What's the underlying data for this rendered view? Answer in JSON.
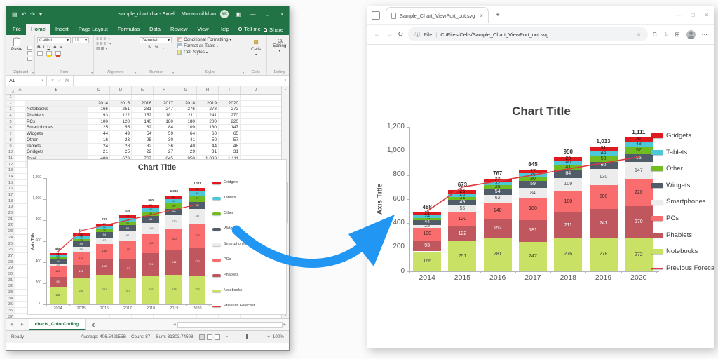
{
  "colors": {
    "excel_green": "#217346",
    "arrow_blue": "#2196f3"
  },
  "icons": {
    "save": "▤",
    "undo": "↶",
    "redo": "↷",
    "dropdown": "▾",
    "minimize": "—",
    "maximize": "□",
    "close": "×",
    "back": "←",
    "forward": "→",
    "refresh": "↻",
    "info": "ⓘ",
    "star": "☆",
    "dots": "⋯",
    "collections": "⊞",
    "c_icon": "C",
    "new_tab": "+",
    "new_sheet": "⊕",
    "scroll_up": "▲",
    "scroll_down": "▼",
    "nav_left": "◀",
    "nav_right": "▶",
    "check": "✓",
    "x_btn": "×",
    "fx": "fx",
    "ribbon_display": "▣",
    "minus": "−",
    "plus": "+",
    "bold": "B",
    "italic": "I",
    "underline": "U",
    "grow_font": "A",
    "shrink_font": "A",
    "align": "≡"
  },
  "excel": {
    "window_title": "sample_chart.xlsx - Excel",
    "user_name": "Muzammil khan",
    "avatar_initials": "MK",
    "menu_tabs": [
      "File",
      "Home",
      "Insert",
      "Page Layout",
      "Formulas",
      "Data",
      "Review",
      "View",
      "Help"
    ],
    "tell_me": "Tell me",
    "share_label": "Share",
    "ribbon": {
      "paste_label": "Paste",
      "font_name": "Calibri",
      "font_size": "11",
      "number_format": "General",
      "currency": "$",
      "percent": "%",
      "comma": ",",
      "styles": [
        "Conditional Formatting",
        "Format as Table",
        "Cell Styles"
      ],
      "cells_label": "Cells",
      "editing_label": "Editing",
      "groups": [
        "Clipboard",
        "Font",
        "Alignment",
        "Number",
        "Styles",
        "Cells",
        "Editing"
      ]
    },
    "name_box": "A1",
    "columns": [
      "A",
      "B",
      "C",
      "D",
      "E",
      "F",
      "G",
      "H",
      "I",
      "J",
      "K"
    ],
    "row_count": 38,
    "table": {
      "years": [
        "2014",
        "2015",
        "2016",
        "2017",
        "2018",
        "2019",
        "2020"
      ],
      "rows": [
        {
          "label": "Notebooks",
          "values": [
            166,
            251,
            281,
            247,
            276,
            278,
            272
          ]
        },
        {
          "label": "Phablets",
          "values": [
            93,
            122,
            152,
            181,
            211,
            241,
            270
          ]
        },
        {
          "label": "PCs",
          "values": [
            100,
            120,
            140,
            180,
            180,
            200,
            220
          ]
        },
        {
          "label": "Smartphones",
          "values": [
            25,
            55,
            62,
            84,
            109,
            130,
            147
          ]
        },
        {
          "label": "Widgets",
          "values": [
            44,
            49,
            54,
            59,
            64,
            60,
            65
          ]
        },
        {
          "label": "Other",
          "values": [
            16,
            23,
            25,
            30,
            41,
            50,
            57
          ]
        },
        {
          "label": "Tablets",
          "values": [
            24,
            28,
            32,
            36,
            40,
            44,
            48
          ]
        },
        {
          "label": "Gridgets",
          "values": [
            21,
            25,
            22,
            27,
            29,
            31,
            31
          ]
        },
        {
          "label": "Total",
          "values": [
            "488",
            "673",
            "767",
            "845",
            "950",
            "1,033",
            "1,111"
          ]
        },
        {
          "label": "Previous Forecast",
          "values": [
            500,
            700,
            750,
            800,
            850,
            900,
            950
          ]
        }
      ]
    },
    "sheet_tab": "charts_ColorCoding",
    "status": {
      "ready": "Ready",
      "average": "Average: 406.5421556",
      "count": "Count: 87",
      "sum": "Sum: 31303.74598",
      "zoom_level": "100%"
    }
  },
  "browser": {
    "tab_title": "Sample_Chart_ViewPort_out.svg",
    "url_scheme": "File",
    "url_path": "C:/Files/Cells/Sample_Chart_ViewPort_out.svg"
  },
  "chart_data": {
    "type": "bar",
    "stacked": true,
    "title": "Chart Title",
    "xlabel": "",
    "ylabel": "Axis Title",
    "ylim": [
      0,
      1200
    ],
    "yticks": [
      "0",
      "200",
      "400",
      "600",
      "800",
      "1,000",
      "1,200"
    ],
    "grid": false,
    "legend_position": "right",
    "categories": [
      "2014",
      "2015",
      "2016",
      "2017",
      "2018",
      "2019",
      "2020"
    ],
    "series": [
      {
        "name": "Notebooks",
        "color": "#c9e265",
        "label_color": "#3c3c3c",
        "values": [
          166,
          251,
          281,
          247,
          276,
          278,
          272
        ]
      },
      {
        "name": "Phablets",
        "color": "#c0575e",
        "label_color": "#ffffff",
        "values": [
          93,
          122,
          152,
          181,
          211,
          241,
          270
        ]
      },
      {
        "name": "PCs",
        "color": "#f96d6f",
        "label_color": "#3c2424",
        "values": [
          100,
          120,
          140,
          180,
          180,
          200,
          220
        ]
      },
      {
        "name": "Smartphones",
        "color": "#ececec",
        "label_color": "#555555",
        "values": [
          25,
          55,
          62,
          84,
          109,
          130,
          147
        ]
      },
      {
        "name": "Widgets",
        "color": "#505d69",
        "label_color": "#ffffff",
        "values": [
          44,
          49,
          54,
          59,
          64,
          60,
          65
        ]
      },
      {
        "name": "Other",
        "color": "#71bc21",
        "label_color": "#2c3a12",
        "values": [
          16,
          23,
          25,
          30,
          41,
          50,
          57
        ]
      },
      {
        "name": "Tablets",
        "color": "#4cc8d6",
        "label_color": "#1c4046",
        "values": [
          24,
          28,
          32,
          36,
          40,
          44,
          48
        ]
      },
      {
        "name": "Gridgets",
        "color": "#e0191f",
        "label_color": "#33090a",
        "values": [
          21,
          25,
          22,
          27,
          29,
          31,
          31
        ]
      }
    ],
    "line_series": {
      "name": "Previous Forecast",
      "color": "#de3a40",
      "values": [
        500,
        700,
        750,
        800,
        850,
        900,
        950
      ]
    },
    "totals": [
      "488",
      "673",
      "767",
      "845",
      "950",
      "1,033",
      "1,111"
    ],
    "legend": [
      {
        "label": "Gridgets",
        "color": "#e0191f",
        "type": "box"
      },
      {
        "label": "Tablets",
        "color": "#4cc8d6",
        "type": "box"
      },
      {
        "label": "Other",
        "color": "#71bc21",
        "type": "box"
      },
      {
        "label": "Widgets",
        "color": "#505d69",
        "type": "box"
      },
      {
        "label": "Smartphones",
        "color": "#ececec",
        "type": "box"
      },
      {
        "label": "PCs",
        "color": "#f96d6f",
        "type": "box"
      },
      {
        "label": "Phablets",
        "color": "#c0575e",
        "type": "box"
      },
      {
        "label": "Notebooks",
        "color": "#c9e265",
        "type": "box"
      },
      {
        "label": "Previous Forecast",
        "color": "#de3a40",
        "type": "line"
      }
    ]
  }
}
